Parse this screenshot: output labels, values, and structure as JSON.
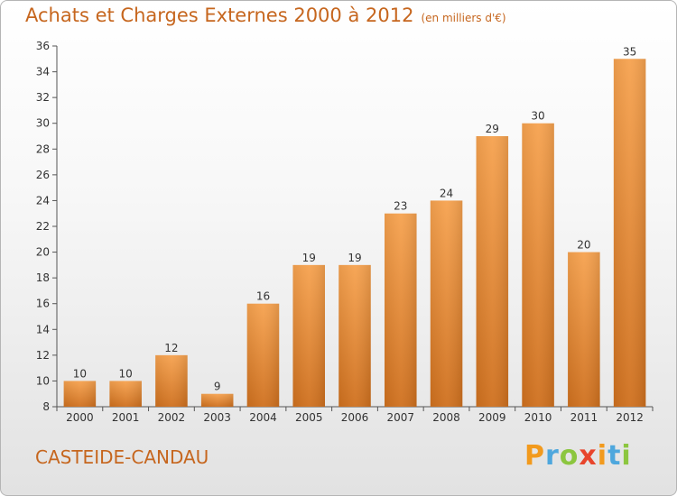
{
  "chart_data": {
    "type": "bar",
    "title": "Achats et Charges Externes 2000 à 2012",
    "subtitle": "(en milliers d'€)",
    "categories": [
      "2000",
      "2001",
      "2002",
      "2003",
      "2004",
      "2005",
      "2006",
      "2007",
      "2008",
      "2009",
      "2010",
      "2011",
      "2012"
    ],
    "values": [
      10,
      10,
      12,
      9,
      16,
      19,
      19,
      23,
      24,
      29,
      30,
      20,
      35
    ],
    "ylim": [
      8,
      36
    ],
    "yticks": [
      8,
      10,
      12,
      14,
      16,
      18,
      20,
      22,
      24,
      26,
      28,
      30,
      32,
      34,
      36
    ],
    "xlabel": "",
    "ylabel": "",
    "grid": false,
    "legend": "none",
    "bar_color_top": "#f6a24f",
    "bar_color_bottom": "#cf701e"
  },
  "footer": {
    "place_name": "CASTEIDE-CANDAU",
    "logo_letters": [
      "P",
      "r",
      "o",
      "x",
      "i",
      "t",
      "i"
    ],
    "logo_colors": [
      "#f29a1d",
      "#4ea7dd",
      "#8cc63f",
      "#e8452c",
      "#f29a1d",
      "#4ea7dd",
      "#8cc63f"
    ]
  },
  "colors": {
    "title": "#c6661e",
    "axis": "#555555"
  }
}
